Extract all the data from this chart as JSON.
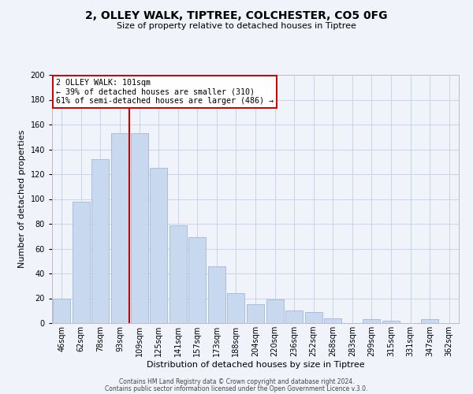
{
  "title": "2, OLLEY WALK, TIPTREE, COLCHESTER, CO5 0FG",
  "subtitle": "Size of property relative to detached houses in Tiptree",
  "xlabel": "Distribution of detached houses by size in Tiptree",
  "ylabel": "Number of detached properties",
  "bar_labels": [
    "46sqm",
    "62sqm",
    "78sqm",
    "93sqm",
    "109sqm",
    "125sqm",
    "141sqm",
    "157sqm",
    "173sqm",
    "188sqm",
    "204sqm",
    "220sqm",
    "236sqm",
    "252sqm",
    "268sqm",
    "283sqm",
    "299sqm",
    "315sqm",
    "331sqm",
    "347sqm",
    "362sqm"
  ],
  "bar_values": [
    20,
    98,
    132,
    153,
    153,
    125,
    79,
    69,
    46,
    24,
    15,
    19,
    10,
    9,
    4,
    0,
    3,
    2,
    0,
    3,
    0
  ],
  "bar_color": "#c8d8ee",
  "bar_edge_color": "#a0b8d8",
  "vline_color": "#cc0000",
  "vline_x_index": 4,
  "annotation_line1": "2 OLLEY WALK: 101sqm",
  "annotation_line2": "← 39% of detached houses are smaller (310)",
  "annotation_line3": "61% of semi-detached houses are larger (486) →",
  "annotation_box_color": "white",
  "annotation_box_edge": "#cc0000",
  "ylim": [
    0,
    200
  ],
  "yticks": [
    0,
    20,
    40,
    60,
    80,
    100,
    120,
    140,
    160,
    180,
    200
  ],
  "footer1": "Contains HM Land Registry data © Crown copyright and database right 2024.",
  "footer2": "Contains public sector information licensed under the Open Government Licence v.3.0.",
  "background_color": "#f0f4fa",
  "grid_color": "#c8d4e8",
  "title_fontsize": 10,
  "subtitle_fontsize": 8,
  "xlabel_fontsize": 8,
  "ylabel_fontsize": 8,
  "tick_fontsize": 7,
  "footer_fontsize": 5.5
}
